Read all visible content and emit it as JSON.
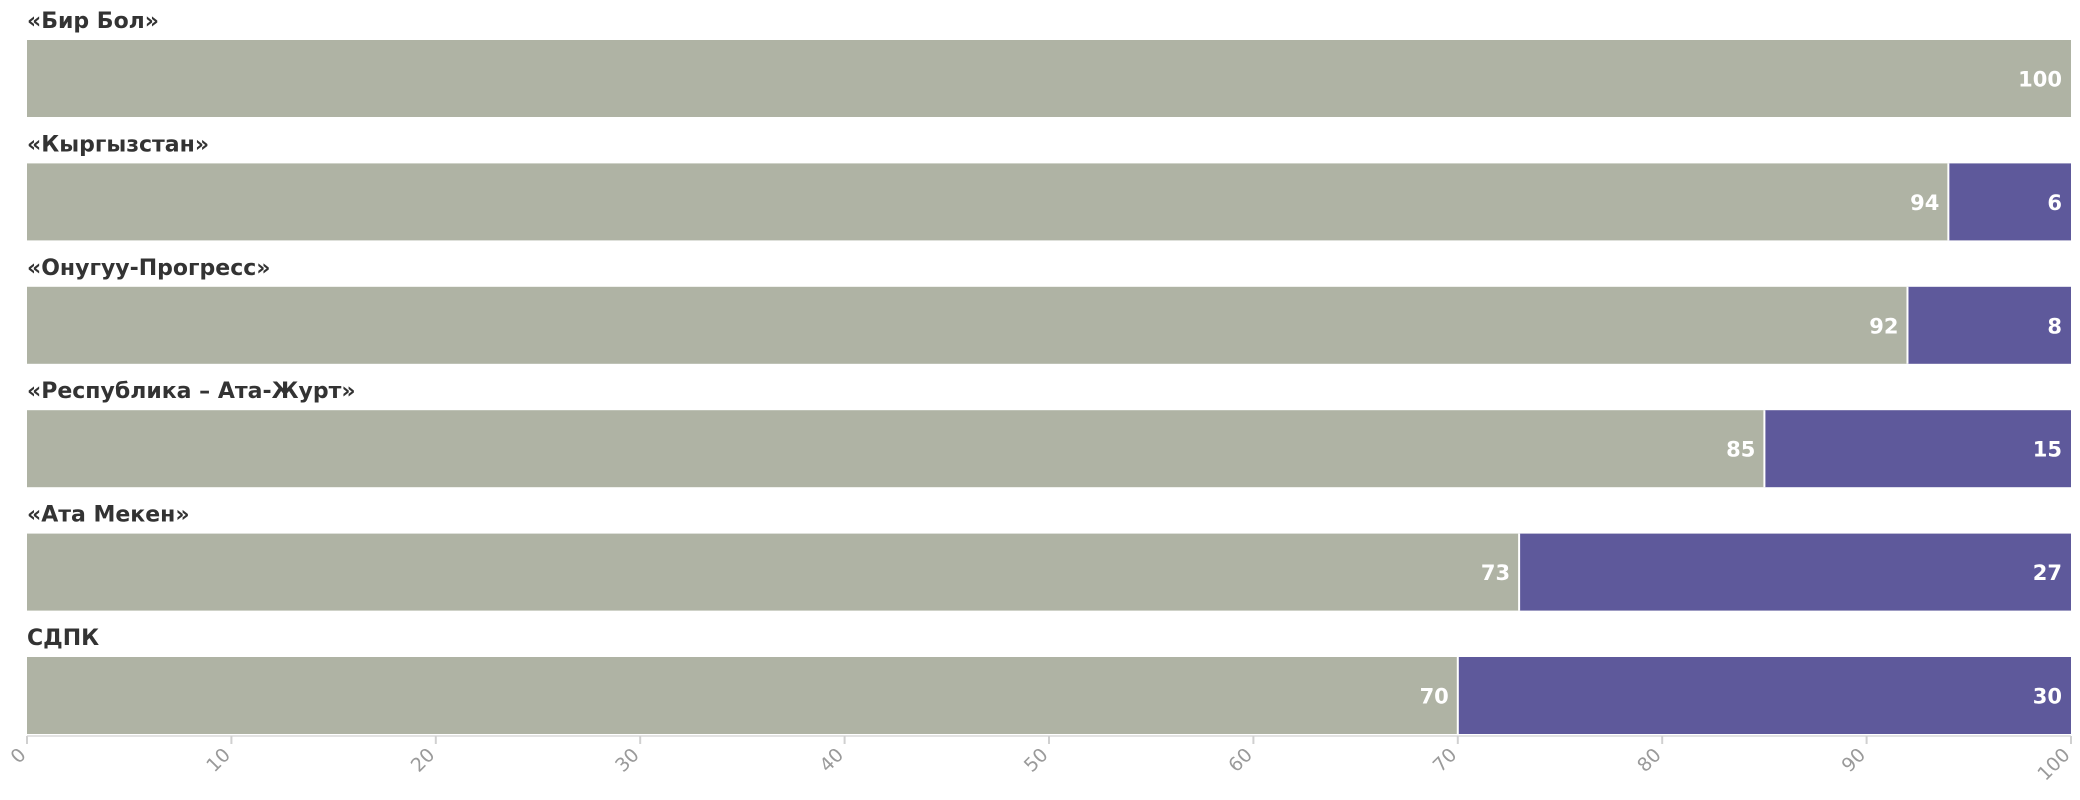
{
  "chart_data": {
    "type": "bar",
    "orientation": "horizontal",
    "stacked": true,
    "categories": [
      "«Бир Бол»",
      "«Кыргызстан»",
      "«Онугуу-Прогресс»",
      "«Республика – Ата-Журт»",
      "«Ата Мекен»",
      "СДПК"
    ],
    "series": [
      {
        "values": [
          100,
          94,
          92,
          85,
          73,
          70
        ]
      },
      {
        "values": [
          0,
          6,
          8,
          15,
          27,
          30
        ]
      }
    ],
    "xlim": [
      0,
      100
    ],
    "xticks": [
      0,
      10,
      20,
      30,
      40,
      50,
      60,
      70,
      80,
      90,
      100
    ],
    "legend": "none",
    "grid": false
  },
  "colors": {
    "series_0": "#afb3a4",
    "series_1": "#5e599b",
    "category_text": "#333333",
    "value_text": "#ffffff",
    "tick_text": "#9a9a9a"
  }
}
